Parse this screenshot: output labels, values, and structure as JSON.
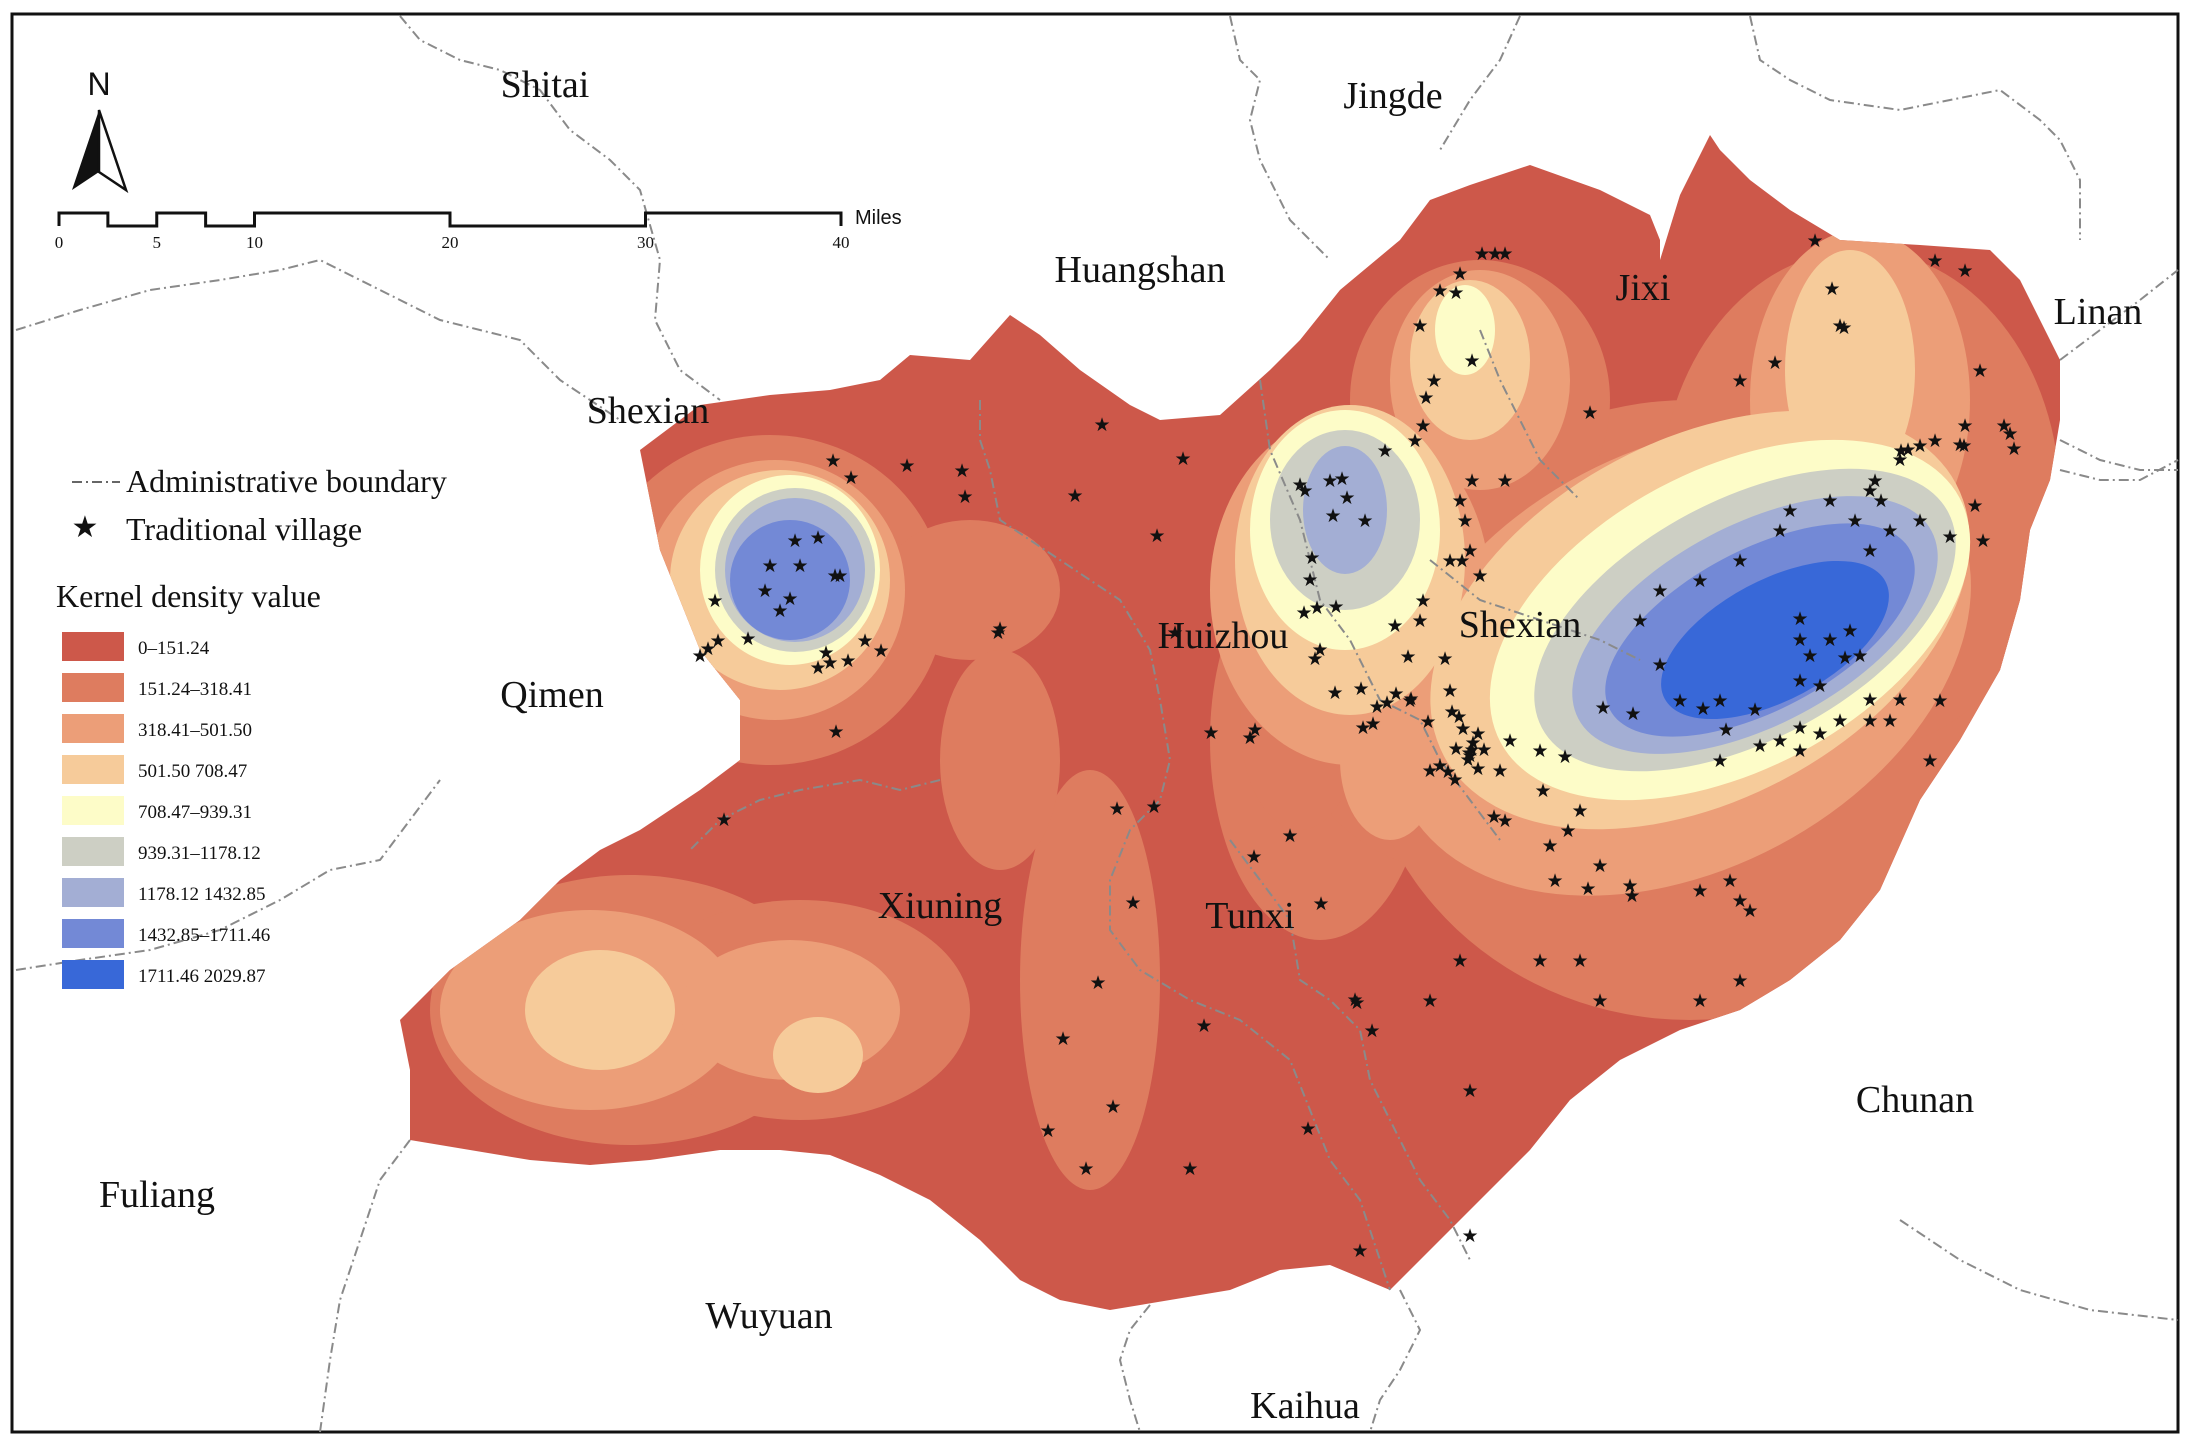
{
  "north_arrow": {
    "label": "N"
  },
  "scale_bar": {
    "ticks": [
      "0",
      "5",
      "10",
      "20",
      "30",
      "40"
    ],
    "tick_values": [
      0,
      2.5,
      5,
      7.5,
      10,
      20,
      30,
      40
    ],
    "unit": "Miles"
  },
  "legend": {
    "boundary_label": "Administrative boundary",
    "village_label": "Traditional village",
    "title": "Kernel density value",
    "classes": [
      {
        "label": "0–151.24",
        "color": "#cd584a"
      },
      {
        "label": "151.24–318.41",
        "color": "#de7c5f"
      },
      {
        "label": "318.41–501.50",
        "color": "#ec9e78"
      },
      {
        "label": "501.50  708.47",
        "color": "#f6cb9a"
      },
      {
        "label": "708.47–939.31",
        "color": "#fdfcc8"
      },
      {
        "label": "939.31–1178.12",
        "color": "#cdcfc4"
      },
      {
        "label": "1178.12  1432.85",
        "color": "#a3aed4"
      },
      {
        "label": "1432.85–1711.46",
        "color": "#7389d6"
      },
      {
        "label": "1711.46  2029.87",
        "color": "#3868d8"
      }
    ]
  },
  "places": {
    "shitai": "Shitai",
    "jingde": "Jingde",
    "huangshan": "Huangshan",
    "jixi": "Jixi",
    "linan": "Linan",
    "shexian_outer": "Shexian",
    "qimen": "Qimen",
    "huizhou": "Huizhou",
    "shexian_inner": "Shexian",
    "xiuning": "Xiuning",
    "tunxi": "Tunxi",
    "chunan": "Chunan",
    "fuliang": "Fuliang",
    "wuyuan": "Wuyuan",
    "kaihua": "Kaihua"
  }
}
